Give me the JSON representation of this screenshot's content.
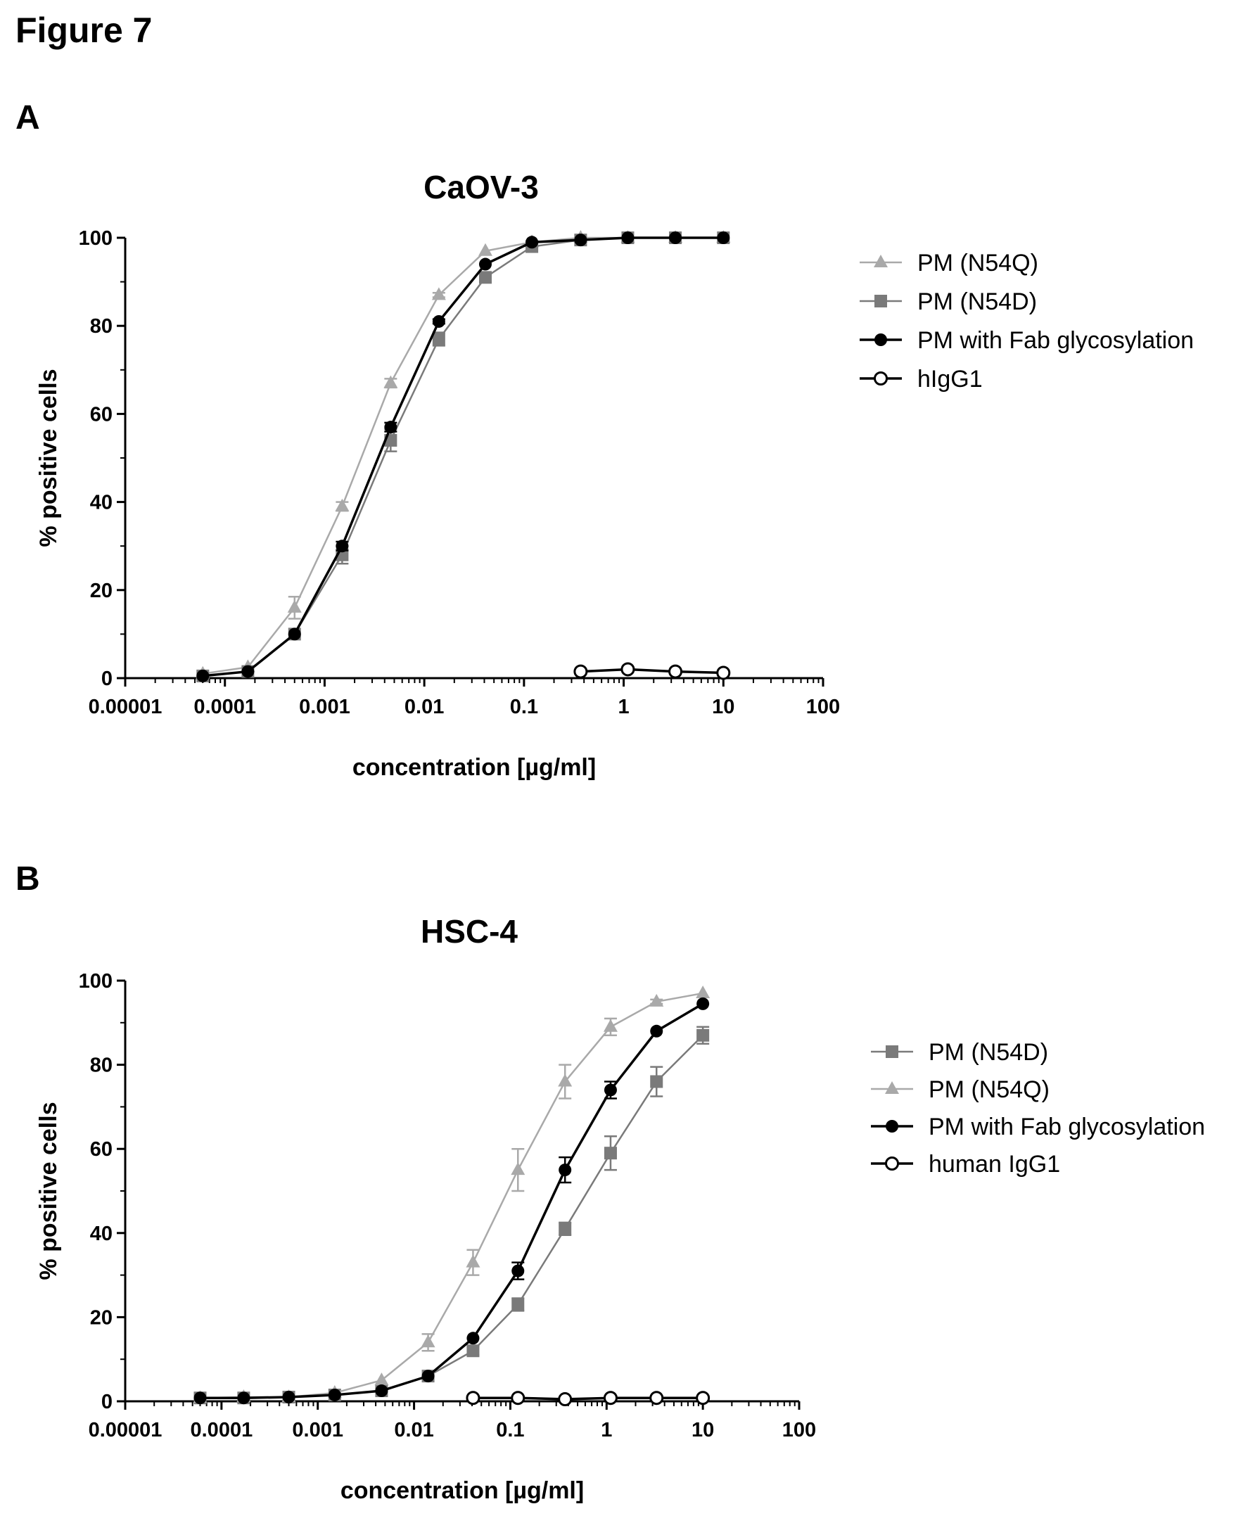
{
  "figure_title": "Figure 7",
  "panels": [
    {
      "label": "A"
    },
    {
      "label": "B"
    }
  ],
  "colors": {
    "light_gray": "#a9a9a9",
    "mid_gray": "#7a7a7a",
    "black": "#000000"
  },
  "chart_data": [
    {
      "type": "line",
      "title": "CaOV-3",
      "xlabel": "concentration [µg/ml]",
      "ylabel": "% positive cells",
      "x_scale": "log",
      "xlim": [
        1e-05,
        100
      ],
      "ylim": [
        0,
        100
      ],
      "x_ticks": [
        "0.00001",
        "0.0001",
        "0.001",
        "0.01",
        "0.1",
        "1",
        "10",
        "100"
      ],
      "y_ticks": [
        "0",
        "20",
        "40",
        "60",
        "80",
        "100"
      ],
      "grid": false,
      "legend_position": "right-top",
      "series": [
        {
          "name": "PM (N54Q)",
          "marker": "triangle",
          "color": "#a9a9a9",
          "x": [
            6e-05,
            0.00017,
            0.0005,
            0.0015,
            0.0046,
            0.014,
            0.041,
            0.12,
            0.37,
            1.1,
            3.3,
            10
          ],
          "y": [
            1,
            2.5,
            16,
            39,
            67,
            87,
            97,
            99,
            100,
            100,
            100,
            100
          ],
          "err": [
            0,
            0,
            2.5,
            1,
            1,
            0.5,
            0,
            0,
            0,
            0,
            0,
            0
          ]
        },
        {
          "name": "PM (N54D)",
          "marker": "square",
          "color": "#7a7a7a",
          "x": [
            6e-05,
            0.00017,
            0.0005,
            0.0015,
            0.0046,
            0.014,
            0.041,
            0.12,
            0.37,
            1.1,
            3.3,
            10
          ],
          "y": [
            0.5,
            1.5,
            10,
            28,
            54,
            77,
            91,
            98,
            99.5,
            100,
            100,
            100
          ],
          "err": [
            0,
            0,
            0,
            2,
            2.5,
            1.5,
            1,
            0,
            0,
            0,
            0,
            0
          ]
        },
        {
          "name": "PM with Fab glycosylation",
          "marker": "circle",
          "color": "#000000",
          "x": [
            6e-05,
            0.00017,
            0.0005,
            0.0015,
            0.0046,
            0.014,
            0.041,
            0.12,
            0.37,
            1.1,
            3.3,
            10
          ],
          "y": [
            0.5,
            1.5,
            10,
            30,
            57,
            81,
            94,
            99,
            99.5,
            100,
            100,
            100
          ],
          "err": [
            0,
            0,
            0,
            1,
            1,
            0.5,
            0,
            0,
            0,
            0,
            0,
            0
          ]
        },
        {
          "name": "hIgG1",
          "marker": "circle-open",
          "color": "#000000",
          "x": [
            0.37,
            1.1,
            3.3,
            10
          ],
          "y": [
            1.5,
            2,
            1.5,
            1.2
          ],
          "err": [
            0,
            0,
            0,
            0
          ]
        }
      ]
    },
    {
      "type": "line",
      "title": "HSC-4",
      "xlabel": "concentration [µg/ml]",
      "ylabel": "% positive cells",
      "x_scale": "log",
      "xlim": [
        1e-05,
        100
      ],
      "ylim": [
        0,
        100
      ],
      "x_ticks": [
        "0.00001",
        "0.0001",
        "0.001",
        "0.01",
        "0.1",
        "1",
        "10",
        "100"
      ],
      "y_ticks": [
        "0",
        "20",
        "40",
        "60",
        "80",
        "100"
      ],
      "grid": false,
      "legend_position": "right-middle",
      "series": [
        {
          "name": "PM (N54D)",
          "marker": "square",
          "color": "#7a7a7a",
          "x": [
            6e-05,
            0.00017,
            0.0005,
            0.0015,
            0.0046,
            0.014,
            0.041,
            0.12,
            0.37,
            1.1,
            3.3,
            10
          ],
          "y": [
            0.8,
            0.8,
            1,
            1.5,
            2.5,
            6,
            12,
            23,
            41,
            59,
            76,
            87
          ],
          "err": [
            0,
            0,
            0,
            0,
            0,
            0,
            1,
            1.5,
            1.5,
            4,
            3.5,
            2
          ]
        },
        {
          "name": "PM (N54Q)",
          "marker": "triangle",
          "color": "#a9a9a9",
          "x": [
            6e-05,
            0.00017,
            0.0005,
            0.0015,
            0.0046,
            0.014,
            0.041,
            0.12,
            0.37,
            1.1,
            3.3,
            10
          ],
          "y": [
            0.8,
            1,
            1,
            2,
            5,
            14,
            33,
            55,
            76,
            89,
            95,
            97
          ],
          "err": [
            0,
            0,
            0,
            0,
            0,
            2,
            3,
            5,
            4,
            2,
            0.5,
            0
          ]
        },
        {
          "name": "PM with Fab glycosylation",
          "marker": "circle",
          "color": "#000000",
          "x": [
            6e-05,
            0.00017,
            0.0005,
            0.0015,
            0.0046,
            0.014,
            0.041,
            0.12,
            0.37,
            1.1,
            3.3,
            10
          ],
          "y": [
            0.8,
            0.8,
            1,
            1.5,
            2.5,
            6,
            15,
            31,
            55,
            74,
            88,
            94.5
          ],
          "err": [
            0,
            0,
            0,
            0,
            0,
            0,
            0,
            2,
            3,
            2,
            0,
            0
          ]
        },
        {
          "name": "human IgG1",
          "marker": "circle-open",
          "color": "#000000",
          "x": [
            0.041,
            0.12,
            0.37,
            1.1,
            3.3,
            10
          ],
          "y": [
            0.8,
            0.8,
            0.5,
            0.8,
            0.8,
            0.8
          ],
          "err": [
            0,
            0,
            0,
            0,
            0,
            0
          ]
        }
      ]
    }
  ]
}
